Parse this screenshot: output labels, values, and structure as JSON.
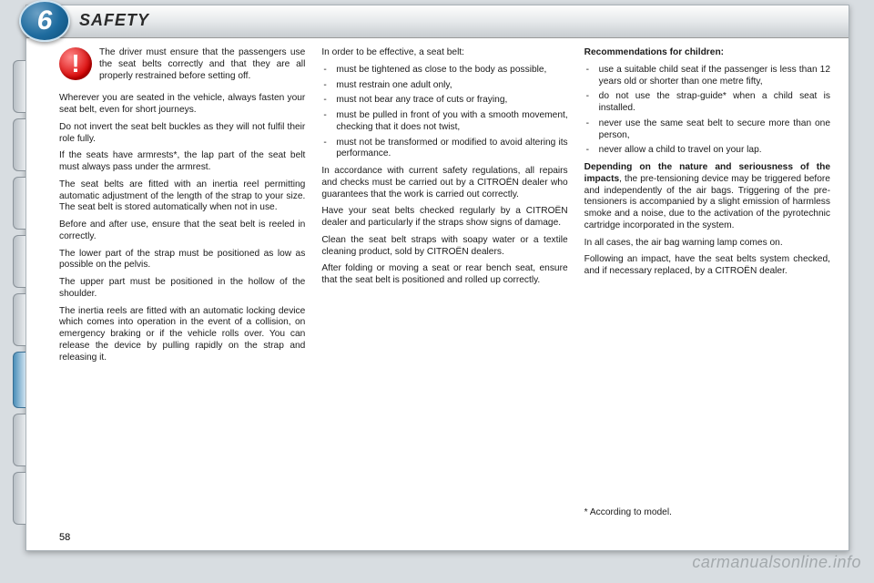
{
  "chapter": {
    "number": "6",
    "title": "SAFETY"
  },
  "page_number": "58",
  "watermark": "carmanualsonline.info",
  "warning_icon": "!",
  "col1": {
    "intro": "The driver must ensure that the passengers use the seat belts correctly and that they are all properly restrained before setting off.",
    "p": [
      "Wherever you are seated in the ve­hicle, always fasten your seat belt, even for short journeys.",
      "Do not invert the seat belt buckles as they will not fulfil their role fully.",
      "If the seats have armrests*, the lap part of the seat belt must always pass under the armrest.",
      "The seat belts are fitted with an in­ertia reel permitting automatic adjust­ment of the length of the strap to your size. The seat belt is stored automat­ically when not in use.",
      "Before and after use, ensure that the seat belt is reeled in correctly.",
      "The lower part of the strap must be positioned as low as possible on the pelvis.",
      "The upper part must be positioned in the hollow of the shoulder.",
      "The inertia reels are fitted with an au­tomatic locking device which comes into operation in the event of a colli­sion, on emergency braking or if the vehicle rolls over. You can release the device by pulling rapidly on the strap and releasing it."
    ]
  },
  "col2": {
    "lead": "In order to be effective, a seat belt:",
    "items": [
      "must be tightened as close to the body as possible,",
      "must restrain one adult only,",
      "must not bear any trace of cuts or fraying,",
      "must be pulled in front of you with a smooth movement, checking that it does not twist,",
      "must not be transformed or modi­fied to avoid altering its perform­ance."
    ],
    "p": [
      "In accordance with current safety regulations, all repairs and checks must be carried out by a CITROËN dealer who guarantees that the work is carried out correctly.",
      "Have your seat belts checked regu­larly by a CITROËN dealer and par­ticularly if the straps show signs of damage.",
      "Clean the seat belt straps with soapy water or a textile cleaning product, sold by CITROËN dealers.",
      "After folding or moving a seat or rear bench seat, ensure that the seat belt is positioned and rolled up correctly."
    ]
  },
  "col3": {
    "heading": "Recommendations for children:",
    "items": [
      "use a suitable child seat if the pas­senger is less than 12 years old or shorter than one metre fifty,",
      "do not use the strap-guide* when a child seat is installed.",
      "never use the same seat belt to secure more than one person,",
      "never allow a child to travel on your lap."
    ],
    "p2a": "Depending on the nature and se­riousness of the impacts",
    "p2b": ", the pre-tensioning device may be triggered before and independently of the air bags. Triggering of the pre-tensioners is accompanied by a slight emission of harmless smoke and a noise, due to the activation of the pyrotechnic cartridge incorporated in the system.",
    "p": [
      "In all cases, the air bag warning lamp comes on.",
      "Following an impact, have the seat belts system checked, and if neces­sary replaced, by a CITROËN dealer."
    ],
    "footnote": "* According to model."
  }
}
